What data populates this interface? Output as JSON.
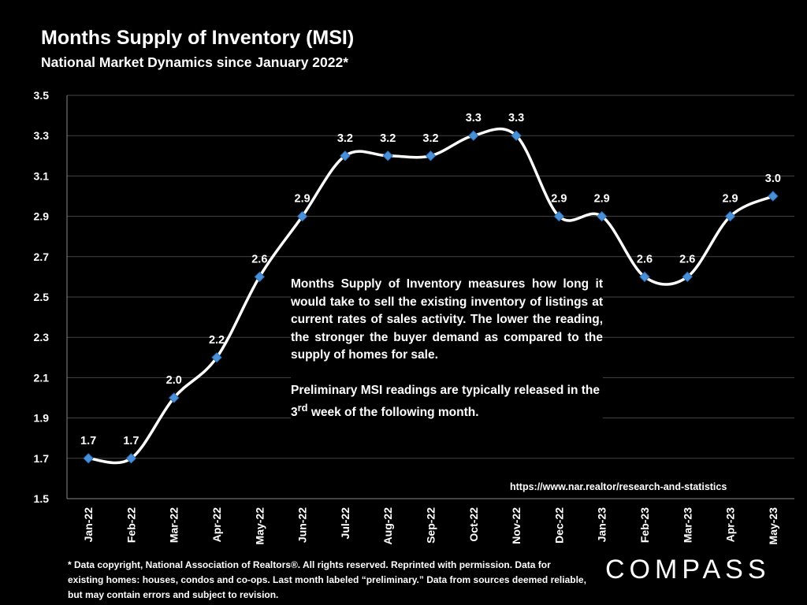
{
  "header": {
    "title": "Months Supply of Inventory (MSI)",
    "subtitle": "National Market Dynamics since January 2022*"
  },
  "chart_data": {
    "type": "line",
    "categories": [
      "Jan-22",
      "Feb-22",
      "Mar-22",
      "Apr-22",
      "May-22",
      "Jun-22",
      "Jul-22",
      "Aug-22",
      "Sep-22",
      "Oct-22",
      "Nov-22",
      "Dec-22",
      "Jan-23",
      "Feb-23",
      "Mar-23",
      "Apr-23",
      "May-23"
    ],
    "series": [
      {
        "values": [
          1.7,
          1.7,
          2.0,
          2.2,
          2.6,
          2.9,
          3.2,
          3.2,
          3.2,
          3.3,
          3.3,
          2.9,
          2.9,
          2.6,
          2.6,
          2.9,
          3.0
        ]
      }
    ],
    "data_labels": [
      "1.7",
      "1.7",
      "2.0",
      "2.2",
      "2.6",
      "2.9",
      "3.2",
      "3.2",
      "3.2",
      "3.3",
      "3.3",
      "2.9",
      "2.9",
      "2.6",
      "2.6",
      "2.9",
      "3.0"
    ],
    "ylim": [
      1.5,
      3.5
    ],
    "yticks": [
      "1.5",
      "1.7",
      "1.9",
      "2.1",
      "2.3",
      "2.5",
      "2.7",
      "2.9",
      "3.1",
      "3.3",
      "3.5"
    ],
    "grid": true,
    "line_color": "#ffffff",
    "marker_color": "#4a90d9",
    "grid_color": "#444444"
  },
  "annotation": {
    "paragraph1": "Months Supply of Inventory measures how long it would take to sell the existing inventory of listings at current rates of sales activity. The lower the reading, the stronger the buyer demand as compared to the supply of homes for sale.",
    "paragraph2_before": "Preliminary MSI readings are typically released in the 3",
    "paragraph2_sup": "rd",
    "paragraph2_after": " week of the following month."
  },
  "source": "https://www.nar.realtor/research-and-statistics",
  "footnote": "* Data copyright, National Association of Realtors®. All rights reserved. Reprinted with permission. Data for existing homes: houses, condos and co-ops. Last month labeled “preliminary.” Data from sources deemed reliable, but may contain errors and subject to revision.",
  "logo": "COMPASS"
}
